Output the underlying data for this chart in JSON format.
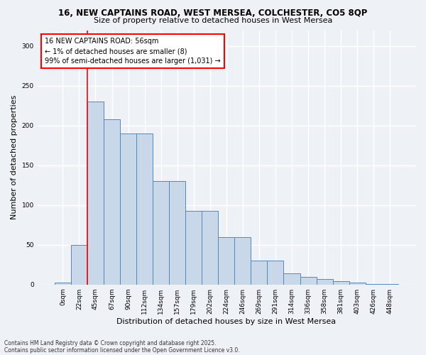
{
  "title_line1": "16, NEW CAPTAINS ROAD, WEST MERSEA, COLCHESTER, CO5 8QP",
  "title_line2": "Size of property relative to detached houses in West Mersea",
  "xlabel": "Distribution of detached houses by size in West Mersea",
  "ylabel": "Number of detached properties",
  "bar_labels": [
    "0sqm",
    "22sqm",
    "45sqm",
    "67sqm",
    "90sqm",
    "112sqm",
    "134sqm",
    "157sqm",
    "179sqm",
    "202sqm",
    "224sqm",
    "246sqm",
    "269sqm",
    "291sqm",
    "314sqm",
    "336sqm",
    "358sqm",
    "381sqm",
    "403sqm",
    "426sqm",
    "448sqm"
  ],
  "bar_values": [
    2,
    50,
    230,
    208,
    190,
    190,
    130,
    130,
    93,
    93,
    60,
    60,
    30,
    30,
    14,
    10,
    7,
    4,
    2,
    1,
    1
  ],
  "bar_color": "#c8d8e8",
  "bar_edge_color": "#5588bb",
  "ylim": [
    0,
    320
  ],
  "yticks": [
    0,
    50,
    100,
    150,
    200,
    250,
    300
  ],
  "annotation_title": "16 NEW CAPTAINS ROAD: 56sqm",
  "annotation_line2": "← 1% of detached houses are smaller (8)",
  "annotation_line3": "99% of semi-detached houses are larger (1,031) →",
  "vline_x": 1.5,
  "footer_line1": "Contains HM Land Registry data © Crown copyright and database right 2025.",
  "footer_line2": "Contains public sector information licensed under the Open Government Licence v3.0.",
  "bg_color": "#eef2f7",
  "grid_color": "#ffffff"
}
